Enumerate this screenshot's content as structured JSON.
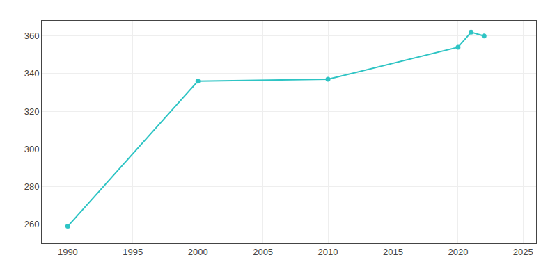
{
  "chart_data": {
    "type": "line",
    "x": [
      1990,
      2000,
      2010,
      2020,
      2021,
      2022
    ],
    "values": [
      259,
      336,
      337,
      354,
      362,
      360
    ],
    "color": "#2EC4C4",
    "marker": "circle",
    "xlim": [
      1988,
      2026
    ],
    "ylim": [
      250,
      368
    ],
    "xticks": [
      1990,
      1995,
      2000,
      2005,
      2010,
      2015,
      2020,
      2025
    ],
    "yticks": [
      260,
      280,
      300,
      320,
      340,
      360
    ],
    "grid": true
  }
}
